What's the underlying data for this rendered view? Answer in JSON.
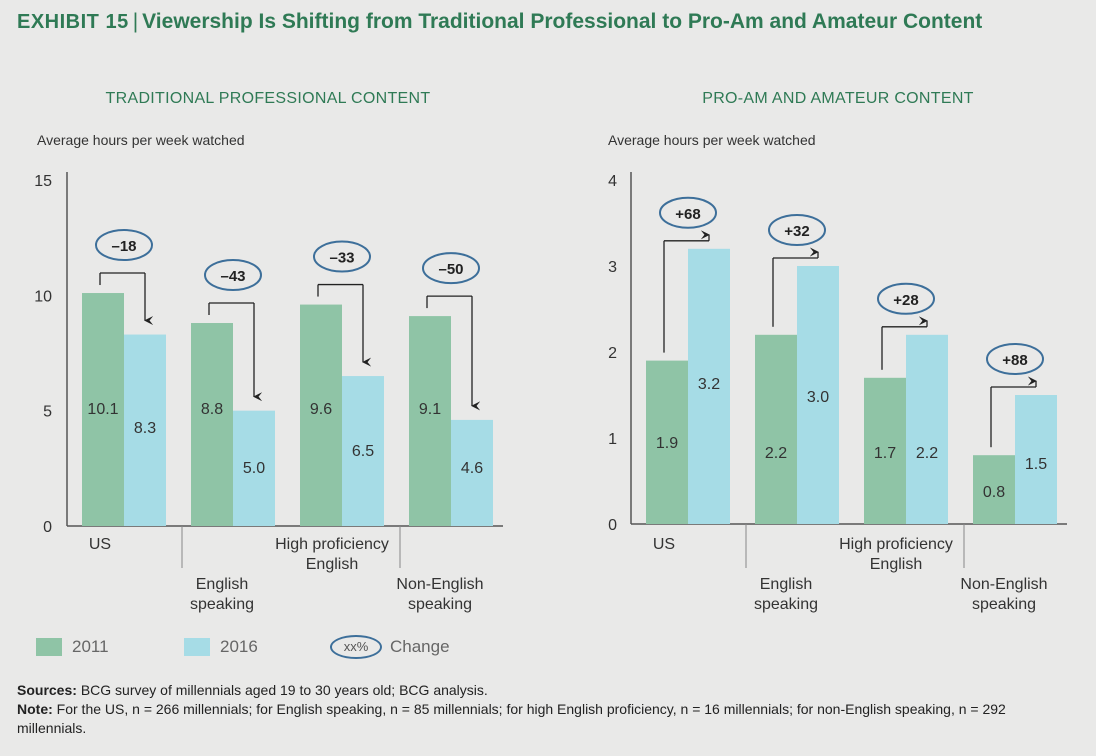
{
  "header": {
    "exhibit": "EXHIBIT 15",
    "separator": "|",
    "title": "Viewership Is Shifting from Traditional Professional to Pro-Am and Amateur Content"
  },
  "legend": {
    "items": [
      {
        "label": "2011",
        "color": "#8fc4a6"
      },
      {
        "label": "2016",
        "color": "#a6dce6"
      }
    ],
    "change_symbol": "xx%",
    "change_label": "Change"
  },
  "colors": {
    "bar_2011": "#8fc4a6",
    "bar_2016": "#a6dce6",
    "oval": "#3d6f9a",
    "panel_title": "#2f7a55",
    "axis": "#555555"
  },
  "chart_data": [
    {
      "type": "bar",
      "panel_title": "TRADITIONAL PROFESSIONAL CONTENT",
      "ylabel": "Average hours per week watched",
      "ylim": [
        0,
        15
      ],
      "yticks": [
        0,
        5,
        10,
        15
      ],
      "categories": [
        {
          "line1": "US",
          "line2": "",
          "position": "top"
        },
        {
          "line1": "English",
          "line2": "speaking",
          "position": "bottom"
        },
        {
          "line1": "High proficiency",
          "line2": "English",
          "position": "top"
        },
        {
          "line1": "Non-English",
          "line2": "speaking",
          "position": "bottom"
        }
      ],
      "series": [
        {
          "name": "2011",
          "values": [
            10.1,
            8.8,
            9.6,
            9.1
          ],
          "labels": [
            "10.1",
            "8.8",
            "9.6",
            "9.1"
          ]
        },
        {
          "name": "2016",
          "values": [
            8.3,
            5.0,
            6.5,
            4.6
          ],
          "labels": [
            "8.3",
            "5.0",
            "6.5",
            "4.6"
          ]
        }
      ],
      "changes": [
        "–18",
        "–43",
        "–33",
        "–50"
      ]
    },
    {
      "type": "bar",
      "panel_title": "PRO-AM AND AMATEUR CONTENT",
      "ylabel": "Average hours per week watched",
      "ylim": [
        0,
        4
      ],
      "yticks": [
        0,
        1,
        2,
        3,
        4
      ],
      "categories": [
        {
          "line1": "US",
          "line2": "",
          "position": "top"
        },
        {
          "line1": "English",
          "line2": "speaking",
          "position": "bottom"
        },
        {
          "line1": "High proficiency",
          "line2": "English",
          "position": "top"
        },
        {
          "line1": "Non-English",
          "line2": "speaking",
          "position": "bottom"
        }
      ],
      "series": [
        {
          "name": "2011",
          "values": [
            1.9,
            2.2,
            1.7,
            0.8
          ],
          "labels": [
            "1.9",
            "2.2",
            "1.7",
            "0.8"
          ]
        },
        {
          "name": "2016",
          "values": [
            3.2,
            3.0,
            2.2,
            1.5
          ],
          "labels": [
            "3.2",
            "3.0",
            "2.2",
            "1.5"
          ]
        }
      ],
      "changes": [
        "+68",
        "+32",
        "+28",
        "+88"
      ]
    }
  ],
  "footer": {
    "sources_label": "Sources:",
    "sources_text": "BCG survey of millennials aged 19 to 30 years old; BCG analysis.",
    "note_label": "Note:",
    "note_text": "For the US, n = 266 millennials; for English speaking, n = 85 millennials; for high English proficiency, n = 16 millennials; for non-English speaking, n = 292 millennials."
  }
}
